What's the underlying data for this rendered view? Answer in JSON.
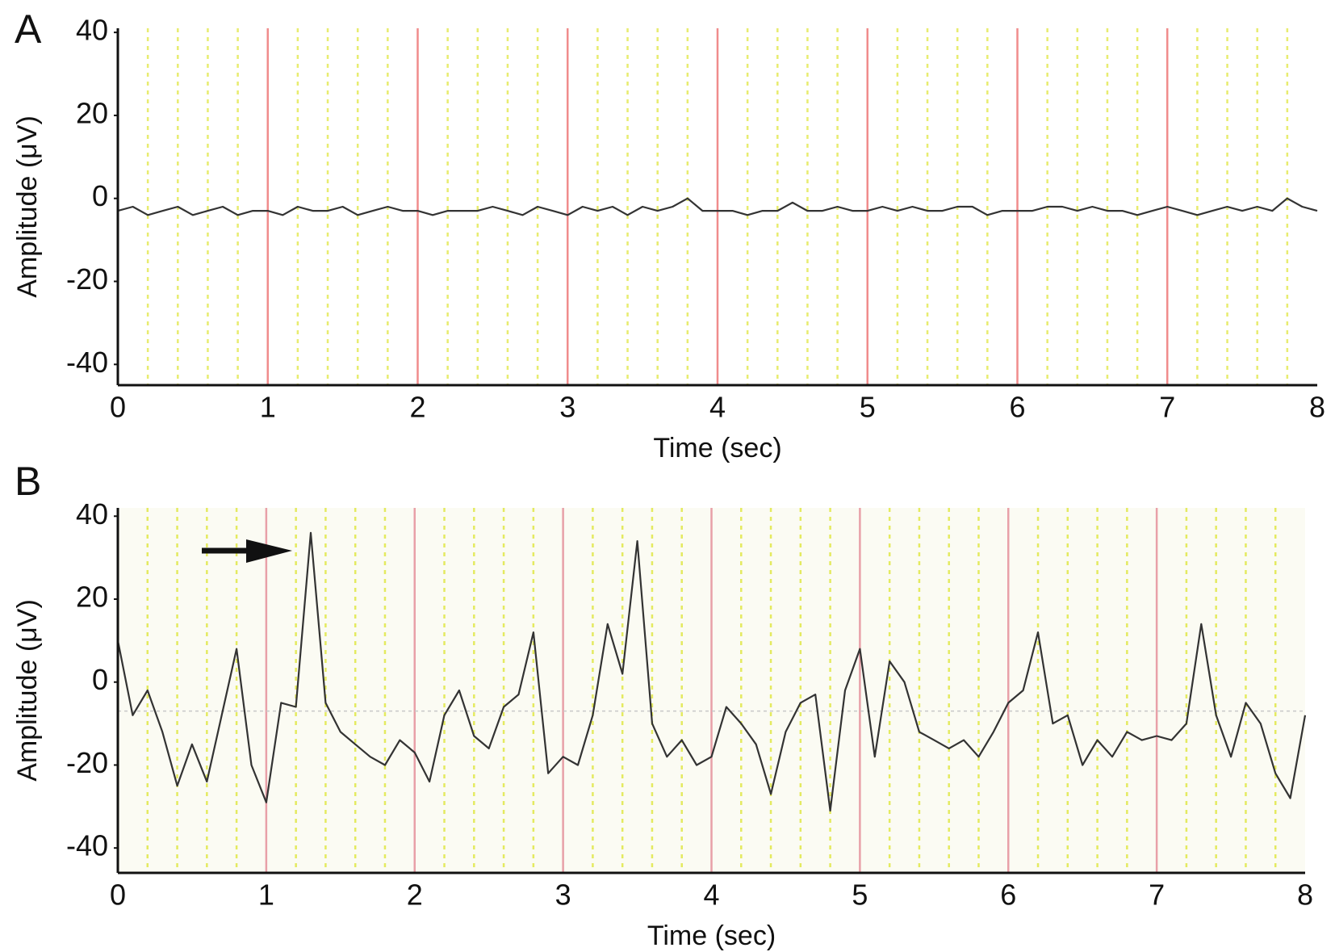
{
  "chart_data": [
    {
      "type": "line",
      "panel_label": "A",
      "xlabel": "Time (sec)",
      "ylabel": "Amplitude (μV)",
      "x": [
        0,
        0.1,
        0.2,
        0.3,
        0.4,
        0.5,
        0.6,
        0.7,
        0.8,
        0.9,
        1,
        1.1,
        1.2,
        1.3,
        1.4,
        1.5,
        1.6,
        1.7,
        1.8,
        1.9,
        2,
        2.1,
        2.2,
        2.3,
        2.4,
        2.5,
        2.6,
        2.7,
        2.8,
        2.9,
        3,
        3.1,
        3.2,
        3.3,
        3.4,
        3.5,
        3.6,
        3.7,
        3.8,
        3.9,
        4,
        4.1,
        4.2,
        4.3,
        4.4,
        4.5,
        4.6,
        4.7,
        4.8,
        4.9,
        5,
        5.1,
        5.2,
        5.3,
        5.4,
        5.5,
        5.6,
        5.7,
        5.8,
        5.9,
        6,
        6.1,
        6.2,
        6.3,
        6.4,
        6.5,
        6.6,
        6.7,
        6.8,
        6.9,
        7,
        7.1,
        7.2,
        7.3,
        7.4,
        7.5,
        7.6,
        7.7,
        7.8,
        7.9,
        8
      ],
      "series": [
        {
          "name": "A",
          "color": "#333333",
          "values": [
            -3,
            -2,
            -4,
            -3,
            -2,
            -4,
            -3,
            -2,
            -4,
            -3,
            -3,
            -4,
            -2,
            -3,
            -3,
            -2,
            -4,
            -3,
            -2,
            -3,
            -3,
            -4,
            -3,
            -3,
            -3,
            -2,
            -3,
            -4,
            -2,
            -3,
            -4,
            -2,
            -3,
            -2,
            -4,
            -2,
            -3,
            -2,
            0,
            -3,
            -3,
            -3,
            -4,
            -3,
            -3,
            -1,
            -3,
            -3,
            -2,
            -3,
            -3,
            -2,
            -3,
            -2,
            -3,
            -3,
            -2,
            -2,
            -4,
            -3,
            -3,
            -3,
            -2,
            -2,
            -3,
            -2,
            -3,
            -3,
            -4,
            -3,
            -2,
            -3,
            -4,
            -3,
            -2,
            -3,
            -2,
            -3,
            0,
            -2,
            -3
          ]
        }
      ],
      "xlim": [
        0,
        8
      ],
      "ylim": [
        -45,
        41
      ],
      "xticks": [
        0,
        1,
        2,
        3,
        4,
        5,
        6,
        7,
        8
      ],
      "yticks": [
        -40,
        -20,
        0,
        20,
        40
      ],
      "xminorticks": [
        0.2,
        0.4,
        0.6,
        0.8,
        1.2,
        1.4,
        1.6,
        1.8,
        2.2,
        2.4,
        2.6,
        2.8,
        3.2,
        3.4,
        3.6,
        3.8,
        4.2,
        4.4,
        4.6,
        4.8,
        5.2,
        5.4,
        5.6,
        5.8,
        6.2,
        6.4,
        6.6,
        6.8,
        7.2,
        7.4,
        7.6,
        7.8
      ],
      "major_grid_color": "#f08c8c",
      "minor_grid_color": "#e8ec70",
      "background": "#ffffff"
    },
    {
      "type": "line",
      "panel_label": "B",
      "xlabel": "Time (sec)",
      "ylabel": "Amplitude (μV)",
      "x": [
        0,
        0.1,
        0.2,
        0.3,
        0.4,
        0.5,
        0.6,
        0.7,
        0.8,
        0.9,
        1,
        1.1,
        1.2,
        1.3,
        1.4,
        1.5,
        1.6,
        1.7,
        1.8,
        1.9,
        2,
        2.1,
        2.2,
        2.3,
        2.4,
        2.5,
        2.6,
        2.7,
        2.8,
        2.9,
        3,
        3.1,
        3.2,
        3.3,
        3.4,
        3.5,
        3.6,
        3.7,
        3.8,
        3.9,
        4,
        4.1,
        4.2,
        4.3,
        4.4,
        4.5,
        4.6,
        4.7,
        4.8,
        4.9,
        5,
        5.1,
        5.2,
        5.3,
        5.4,
        5.5,
        5.6,
        5.7,
        5.8,
        5.9,
        6,
        6.1,
        6.2,
        6.3,
        6.4,
        6.5,
        6.6,
        6.7,
        6.8,
        6.9,
        7,
        7.1,
        7.2,
        7.3,
        7.4,
        7.5,
        7.6,
        7.7,
        7.8,
        7.9,
        8
      ],
      "series": [
        {
          "name": "B",
          "color": "#333333",
          "values": [
            10,
            -8,
            -2,
            -12,
            -25,
            -15,
            -24,
            -8,
            8,
            -20,
            -29,
            -5,
            -6,
            36,
            -5,
            -12,
            -15,
            -18,
            -20,
            -14,
            -17,
            -24,
            -8,
            -2,
            -13,
            -16,
            -6,
            -3,
            12,
            -22,
            -18,
            -20,
            -8,
            14,
            2,
            34,
            -10,
            -18,
            -14,
            -20,
            -18,
            -6,
            -10,
            -15,
            -27,
            -12,
            -5,
            -3,
            -31,
            -2,
            8,
            -18,
            5,
            0,
            -12,
            -14,
            -16,
            -14,
            -18,
            -12,
            -5,
            -2,
            12,
            -10,
            -8,
            -20,
            -14,
            -18,
            -12,
            -14,
            -13,
            -14,
            -10,
            14,
            -8,
            -18,
            -5,
            -10,
            -22,
            -28,
            -8
          ]
        }
      ],
      "xlim": [
        0,
        8
      ],
      "ylim": [
        -46,
        42
      ],
      "xticks": [
        0,
        1,
        2,
        3,
        4,
        5,
        6,
        7,
        8
      ],
      "yticks": [
        -40,
        -20,
        0,
        20,
        40
      ],
      "xminorticks": [
        0.2,
        0.4,
        0.6,
        0.8,
        1.2,
        1.4,
        1.6,
        1.8,
        2.2,
        2.4,
        2.6,
        2.8,
        3.2,
        3.4,
        3.6,
        3.8,
        4.2,
        4.4,
        4.6,
        4.8,
        5.2,
        5.4,
        5.6,
        5.8,
        6.2,
        6.4,
        6.6,
        6.8,
        7.2,
        7.4,
        7.6,
        7.8
      ],
      "reference_line": -7,
      "major_grid_color": "#e8a0a8",
      "minor_grid_color": "#e4ea60",
      "background": "#fbfbf3"
    }
  ]
}
